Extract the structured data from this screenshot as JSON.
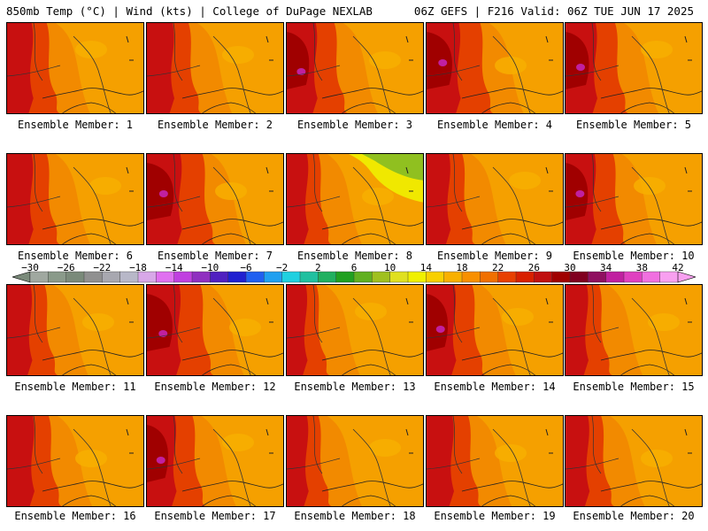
{
  "header": {
    "left_title": "850mb Temp (°C) | Wind (kts) | College of DuPage NEXLAB",
    "right_title": "06Z GEFS | F216 Valid: 06Z TUE JUN 17 2025"
  },
  "panels": [
    {
      "label": "Ensemble Member: 1",
      "hot": 0.55,
      "green": 0
    },
    {
      "label": "Ensemble Member: 2",
      "hot": 0.6,
      "green": 0
    },
    {
      "label": "Ensemble Member: 3",
      "hot": 0.75,
      "green": 0
    },
    {
      "label": "Ensemble Member: 4",
      "hot": 0.9,
      "green": 0
    },
    {
      "label": "Ensemble Member: 5",
      "hot": 0.8,
      "green": 0
    },
    {
      "label": "Ensemble Member: 6",
      "hot": 0.55,
      "green": 0
    },
    {
      "label": "Ensemble Member: 7",
      "hot": 0.95,
      "green": 0
    },
    {
      "label": "Ensemble Member: 8",
      "hot": 0.35,
      "green": 1
    },
    {
      "label": "Ensemble Member: 9",
      "hot": 0.45,
      "green": 0
    },
    {
      "label": "Ensemble Member: 10",
      "hot": 0.75,
      "green": 0
    },
    {
      "label": "Ensemble Member: 11",
      "hot": 0.5,
      "green": 0
    },
    {
      "label": "Ensemble Member: 12",
      "hot": 0.9,
      "green": 0
    },
    {
      "label": "Ensemble Member: 13",
      "hot": 0.3,
      "green": 0
    },
    {
      "label": "Ensemble Member: 14",
      "hot": 0.7,
      "green": 0
    },
    {
      "label": "Ensemble Member: 15",
      "hot": 0.4,
      "green": 0
    },
    {
      "label": "Ensemble Member: 16",
      "hot": 0.6,
      "green": 0
    },
    {
      "label": "Ensemble Member: 17",
      "hot": 0.7,
      "green": 0
    },
    {
      "label": "Ensemble Member: 18",
      "hot": 0.35,
      "green": 0
    },
    {
      "label": "Ensemble Member: 19",
      "hot": 0.6,
      "green": 0
    },
    {
      "label": "Ensemble Member: 20",
      "hot": 0.45,
      "green": 0
    }
  ],
  "colorbar": {
    "tick_labels": [
      "−30",
      "−26",
      "−22",
      "−18",
      "−14",
      "−10",
      "−6",
      "−2",
      "2",
      "6",
      "10",
      "14",
      "18",
      "22",
      "26",
      "30",
      "34",
      "38",
      "42"
    ],
    "colors": [
      "#a0a8a0",
      "#8a9a8a",
      "#7a8a7a",
      "#909090",
      "#a8a8b0",
      "#b8b8c8",
      "#d8a8e8",
      "#e070f0",
      "#c040e0",
      "#9030c0",
      "#5020c0",
      "#2020d0",
      "#2060f0",
      "#20a0f0",
      "#20d0e0",
      "#20c0a0",
      "#20b060",
      "#20a020",
      "#60b020",
      "#a0c020",
      "#e0e020",
      "#f0f000",
      "#f8d000",
      "#f8b000",
      "#f89000",
      "#f07000",
      "#e84000",
      "#d82000",
      "#c01010",
      "#a00000",
      "#800020",
      "#901060",
      "#c020a0",
      "#e040c0",
      "#f070e0",
      "#f8a0f0"
    ]
  }
}
